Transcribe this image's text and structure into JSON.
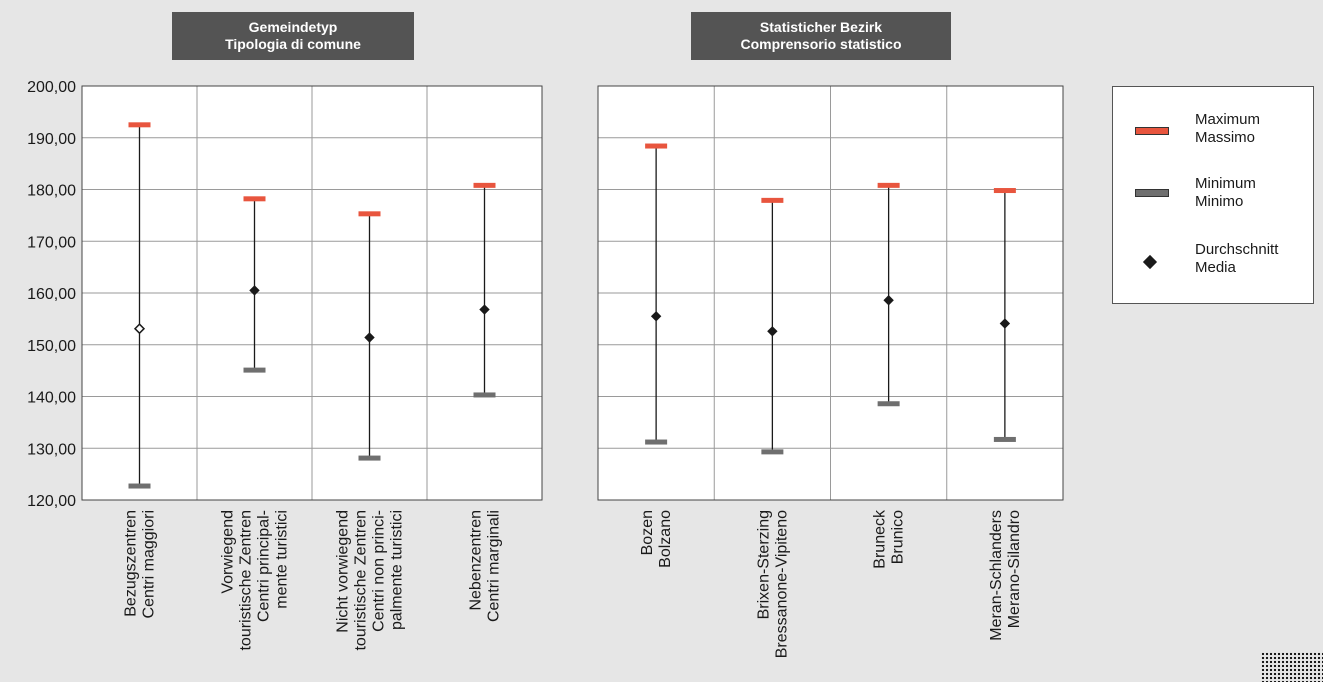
{
  "panels": [
    {
      "header_lines": [
        "Gemeindetyp",
        "Tipologia di comune"
      ]
    },
    {
      "header_lines": [
        "Statisticher Bezirk",
        "Comprensorio statistico"
      ]
    }
  ],
  "legend": {
    "items": [
      {
        "key": "max",
        "lines": [
          "Maximum",
          "Massimo"
        ],
        "color": "#e8553e"
      },
      {
        "key": "min",
        "lines": [
          "Minimum",
          "Minimo"
        ],
        "color": "#6f6f6f"
      },
      {
        "key": "avg",
        "lines": [
          "Durchschnitt",
          "Media"
        ],
        "color": "#1a1a1a"
      }
    ]
  },
  "chart_data": [
    {
      "type": "scatter",
      "title": "",
      "ylim": [
        120,
        200
      ],
      "yticks": [
        120,
        130,
        140,
        150,
        160,
        170,
        180,
        190,
        200
      ],
      "ytick_labels": [
        "120,00",
        "130,00",
        "140,00",
        "150,00",
        "160,00",
        "170,00",
        "180,00",
        "190,00",
        "200,00"
      ],
      "grid": true,
      "legend_position": "right",
      "categories": [
        {
          "lines": [
            "Bezugszentren",
            "Centri  maggiori"
          ]
        },
        {
          "lines": [
            "Vorwiegend",
            "touristische Zentren",
            "Centri principal-",
            "mente turistici"
          ]
        },
        {
          "lines": [
            "Nicht vorwiegend",
            "touristische Zentren",
            "Centri non princi-",
            "palmente turistici"
          ]
        },
        {
          "lines": [
            "Nebenzentren",
            "Centri marginali"
          ]
        }
      ],
      "series": [
        {
          "name": "Maximum / Massimo",
          "values": [
            192.5,
            178.2,
            175.3,
            180.8
          ]
        },
        {
          "name": "Minimum / Minimo",
          "values": [
            122.7,
            145.1,
            128.1,
            140.3
          ]
        },
        {
          "name": "Durchschnitt / Media",
          "values": [
            153.1,
            160.5,
            151.4,
            156.8
          ]
        }
      ]
    },
    {
      "type": "scatter",
      "title": "",
      "ylim": [
        120,
        200
      ],
      "grid": true,
      "categories": [
        {
          "lines": [
            "Bozen",
            "Bolzano"
          ]
        },
        {
          "lines": [
            "Brixen-Sterzing",
            "Bressanone-Vipiteno"
          ]
        },
        {
          "lines": [
            "Bruneck",
            "Brunico"
          ]
        },
        {
          "lines": [
            "Meran-Schlanders",
            "Merano-Silandro"
          ]
        }
      ],
      "series": [
        {
          "name": "Maximum / Massimo",
          "values": [
            188.4,
            177.9,
            180.8,
            179.8
          ]
        },
        {
          "name": "Minimum / Minimo",
          "values": [
            131.2,
            129.3,
            138.6,
            131.7
          ]
        },
        {
          "name": "Durchschnitt / Media",
          "values": [
            155.5,
            152.6,
            158.6,
            154.1
          ]
        }
      ]
    }
  ]
}
